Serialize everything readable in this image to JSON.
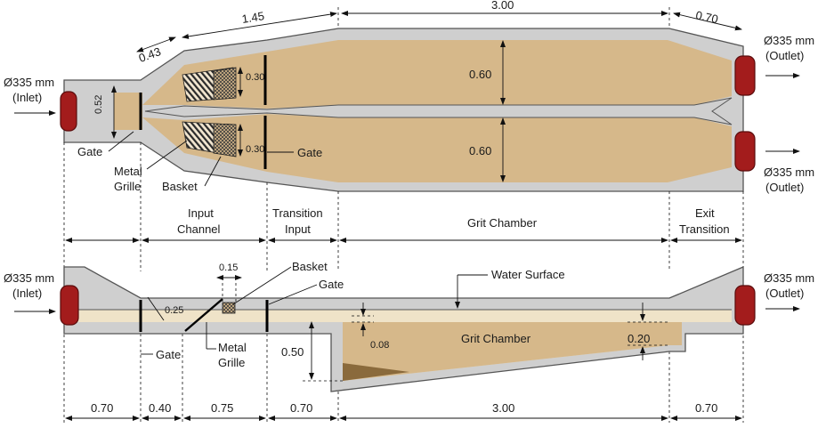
{
  "top_view": {
    "inlet_label": [
      "Ø335 mm",
      "(Inlet)"
    ],
    "outlet_label_top": [
      "Ø335 mm",
      "(Outlet)"
    ],
    "outlet_label_bottom": [
      "Ø335 mm",
      "(Outlet)"
    ],
    "dim_043": "0.43",
    "dim_145": "1.45",
    "dim_300": "3.00",
    "dim_070": "0.70",
    "dim_052": "0.52",
    "dim_030_top": "0.30",
    "dim_030_bottom": "0.30",
    "dim_060_top": "0.60",
    "dim_060_bottom": "0.60",
    "gate_left": "Gate",
    "gate_right": "Gate",
    "metal_grille": [
      "Metal",
      "Grille"
    ],
    "basket": "Basket"
  },
  "sections": {
    "input_channel": [
      "Input",
      "Channel"
    ],
    "transition_input": [
      "Transition",
      "Input"
    ],
    "grit_chamber": "Grit Chamber",
    "exit_transition": [
      "Exit",
      "Transition"
    ]
  },
  "side_view": {
    "inlet_label": [
      "Ø335 mm",
      "(Inlet)"
    ],
    "outlet_label": [
      "Ø335 mm",
      "(Outlet)"
    ],
    "dim_015": "0.15",
    "basket": "Basket",
    "gate_top": "Gate",
    "water_surface": "Water Surface",
    "dim_025": "0.25",
    "dim_008": "0.08",
    "grit_chamber": "Grit Chamber",
    "dim_020": "0.20",
    "dim_050": "0.50",
    "gate_bottom": "Gate",
    "metal_grille": [
      "Metal",
      "Grille"
    ]
  },
  "bottom_dims": [
    "0.70",
    "0.40",
    "0.75",
    "0.70",
    "3.00",
    "0.70"
  ]
}
